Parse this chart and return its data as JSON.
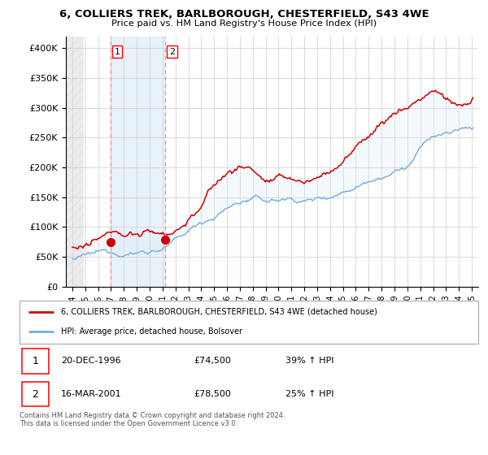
{
  "title_line1": "6, COLLIERS TREK, BARLBOROUGH, CHESTERFIELD, S43 4WE",
  "title_line2": "Price paid vs. HM Land Registry's House Price Index (HPI)",
  "xlim_start": 1993.5,
  "xlim_end": 2025.5,
  "ylim_min": 0,
  "ylim_max": 420000,
  "yticks": [
    0,
    50000,
    100000,
    150000,
    200000,
    250000,
    300000,
    350000,
    400000
  ],
  "ytick_labels": [
    "£0",
    "£50K",
    "£100K",
    "£150K",
    "£200K",
    "£250K",
    "£300K",
    "£350K",
    "£400K"
  ],
  "xticks": [
    1994,
    1995,
    1996,
    1997,
    1998,
    1999,
    2000,
    2001,
    2002,
    2003,
    2004,
    2005,
    2006,
    2007,
    2008,
    2009,
    2010,
    2011,
    2012,
    2013,
    2014,
    2015,
    2016,
    2017,
    2018,
    2019,
    2020,
    2021,
    2022,
    2023,
    2024,
    2025
  ],
  "hpi_color": "#7AABDC",
  "price_color": "#CC0000",
  "sale1_x": 1996.96,
  "sale1_y": 74500,
  "sale2_x": 2001.21,
  "sale2_y": 78500,
  "vline_color": "#FF8888",
  "shade_color": "#D6E8F7",
  "hatch_color": "#CCCCCC",
  "legend_label_red": "6, COLLIERS TREK, BARLBOROUGH, CHESTERFIELD, S43 4WE (detached house)",
  "legend_label_blue": "HPI: Average price, detached house, Bolsover",
  "table_entries": [
    {
      "num": "1",
      "date": "20-DEC-1996",
      "price": "£74,500",
      "hpi": "39% ↑ HPI"
    },
    {
      "num": "2",
      "date": "16-MAR-2001",
      "price": "£78,500",
      "hpi": "25% ↑ HPI"
    }
  ],
  "footer": "Contains HM Land Registry data © Crown copyright and database right 2024.\nThis data is licensed under the Open Government Licence v3.0."
}
